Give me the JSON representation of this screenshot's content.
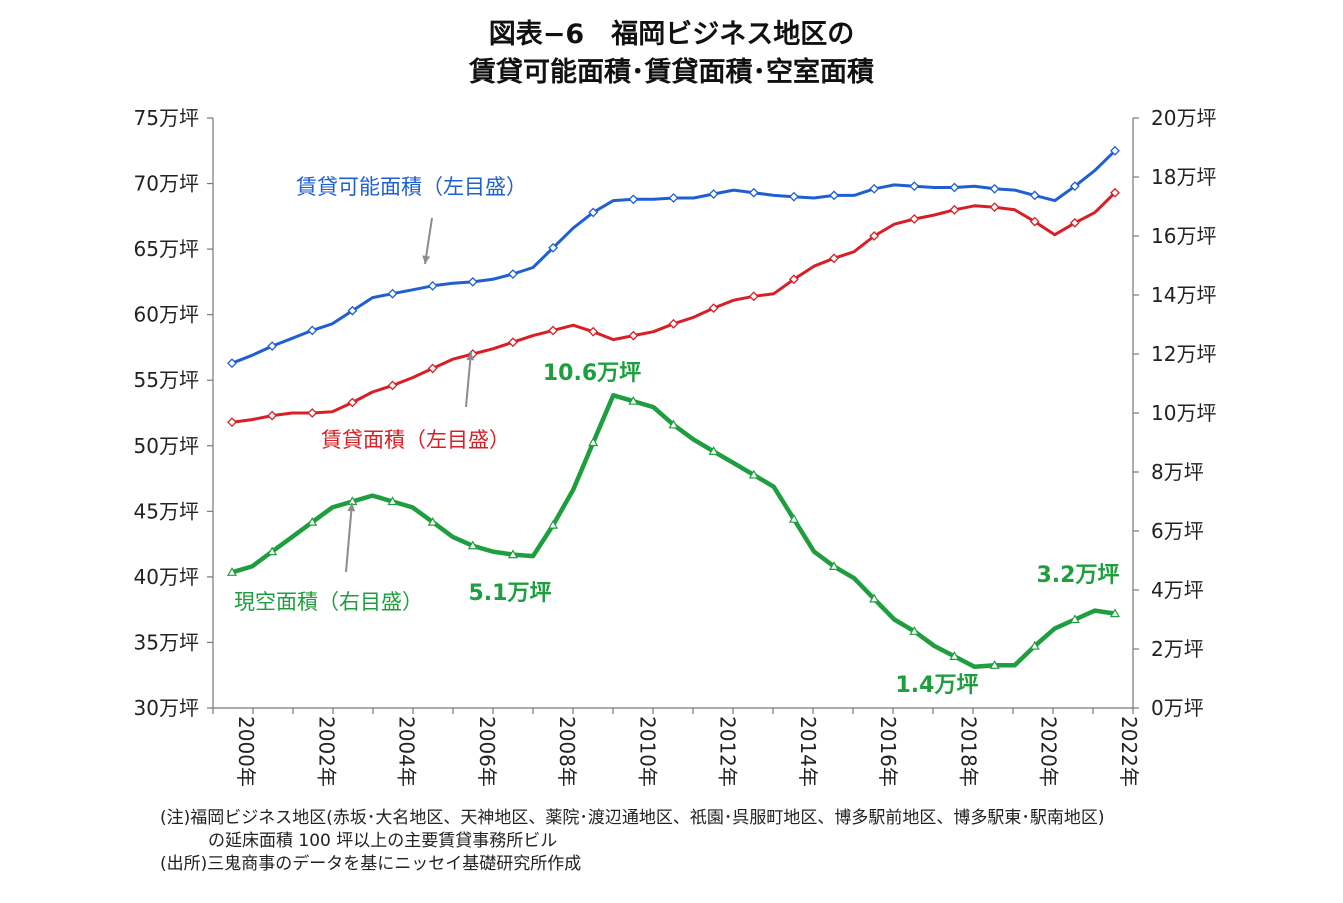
{
  "title": {
    "line1": "図表−6　福岡ビジネス地区の",
    "line2": "賃貸可能面積･賃貸面積･空室面積"
  },
  "notes": {
    "line1": "(注)福岡ビジネス地区(赤坂･大名地区、天神地区、薬院･渡辺通地区、祇園･呉服町地区、博多駅前地区、博多駅東･駅南地区)",
    "line2": "の延床面積 100 坪以上の主要賃貸事務所ビル",
    "line3": "(出所)三鬼商事のデータを基にニッセイ基礎研究所作成"
  },
  "chart_data": {
    "type": "line",
    "x": [
      2000,
      2000.5,
      2001,
      2001.5,
      2002,
      2002.5,
      2003,
      2003.5,
      2004,
      2004.5,
      2005,
      2005.5,
      2006,
      2006.5,
      2007,
      2007.5,
      2008,
      2008.5,
      2009,
      2009.5,
      2010,
      2010.5,
      2011,
      2011.5,
      2012,
      2012.5,
      2013,
      2013.5,
      2014,
      2014.5,
      2015,
      2015.5,
      2016,
      2016.5,
      2017,
      2017.5,
      2018,
      2018.5,
      2019,
      2019.5,
      2020,
      2020.5,
      2021,
      2021.5,
      2022
    ],
    "x_tick_labels": [
      "2000年",
      "2002年",
      "2004年",
      "2006年",
      "2008年",
      "2010年",
      "2012年",
      "2014年",
      "2016年",
      "2018年",
      "2020年",
      "2022年"
    ],
    "y_left": {
      "min": 30,
      "max": 75,
      "step": 5,
      "tick_labels": [
        "30万坪",
        "35万坪",
        "40万坪",
        "45万坪",
        "50万坪",
        "55万坪",
        "60万坪",
        "65万坪",
        "70万坪",
        "75万坪"
      ]
    },
    "y_right": {
      "min": 0,
      "max": 20,
      "step": 2,
      "tick_labels": [
        "0万坪",
        "2万坪",
        "4万坪",
        "6万坪",
        "8万坪",
        "10万坪",
        "12万坪",
        "14万坪",
        "16万坪",
        "18万坪",
        "20万坪"
      ]
    },
    "series": [
      {
        "name": "賃貸可能面積（左目盛）",
        "axis": "left",
        "color": "#1f5fd1",
        "marker": "diamond",
        "values": [
          56.3,
          56.9,
          57.6,
          58.2,
          58.8,
          59.3,
          60.3,
          61.3,
          61.6,
          61.9,
          62.2,
          62.4,
          62.5,
          62.7,
          63.1,
          63.6,
          65.1,
          66.6,
          67.8,
          68.7,
          68.8,
          68.8,
          68.9,
          68.9,
          69.2,
          69.5,
          69.3,
          69.1,
          69.0,
          68.9,
          69.1,
          69.1,
          69.6,
          69.9,
          69.8,
          69.7,
          69.7,
          69.8,
          69.6,
          69.5,
          69.1,
          68.7,
          69.8,
          71.0,
          72.5
        ]
      },
      {
        "name": "賃貸面積（左目盛）",
        "axis": "left",
        "color": "#d81f26",
        "marker": "diamond",
        "values": [
          51.8,
          52.0,
          52.3,
          52.5,
          52.5,
          52.6,
          53.3,
          54.1,
          54.6,
          55.2,
          55.9,
          56.6,
          57.0,
          57.4,
          57.9,
          58.4,
          58.8,
          59.2,
          58.7,
          58.1,
          58.4,
          58.7,
          59.3,
          59.8,
          60.5,
          61.1,
          61.4,
          61.6,
          62.7,
          63.7,
          64.3,
          64.8,
          66.0,
          66.9,
          67.3,
          67.6,
          68.0,
          68.3,
          68.2,
          68.0,
          67.1,
          66.1,
          67.0,
          67.8,
          69.3
        ]
      },
      {
        "name": "現空面積（右目盛）",
        "axis": "right",
        "color": "#1e9e3e",
        "marker": "triangle",
        "values": [
          4.6,
          4.8,
          5.3,
          5.8,
          6.3,
          6.8,
          7.0,
          7.2,
          7.0,
          6.8,
          6.3,
          5.8,
          5.5,
          5.3,
          5.2,
          5.15,
          6.2,
          7.4,
          9.0,
          10.6,
          10.4,
          10.2,
          9.6,
          9.1,
          8.7,
          8.3,
          7.9,
          7.5,
          6.4,
          5.3,
          4.8,
          4.4,
          3.7,
          3.0,
          2.6,
          2.1,
          1.75,
          1.4,
          1.45,
          1.45,
          2.1,
          2.7,
          3.0,
          3.3,
          3.2
        ]
      }
    ],
    "annotations": [
      {
        "text": "賃貸可能面積（左目盛）",
        "color": "#1f5fd1",
        "bold": false
      },
      {
        "text": "賃貸面積（左目盛）",
        "color": "#d81f26",
        "bold": false
      },
      {
        "text": "現空面積（右目盛）",
        "color": "#1e9e3e",
        "bold": false
      },
      {
        "text": "10.6万坪",
        "color": "#1e9e3e",
        "bold": true
      },
      {
        "text": "5.1万坪",
        "color": "#1e9e3e",
        "bold": true
      },
      {
        "text": "1.4万坪",
        "color": "#1e9e3e",
        "bold": true
      },
      {
        "text": "3.2万坪",
        "color": "#1e9e3e",
        "bold": true
      }
    ]
  }
}
